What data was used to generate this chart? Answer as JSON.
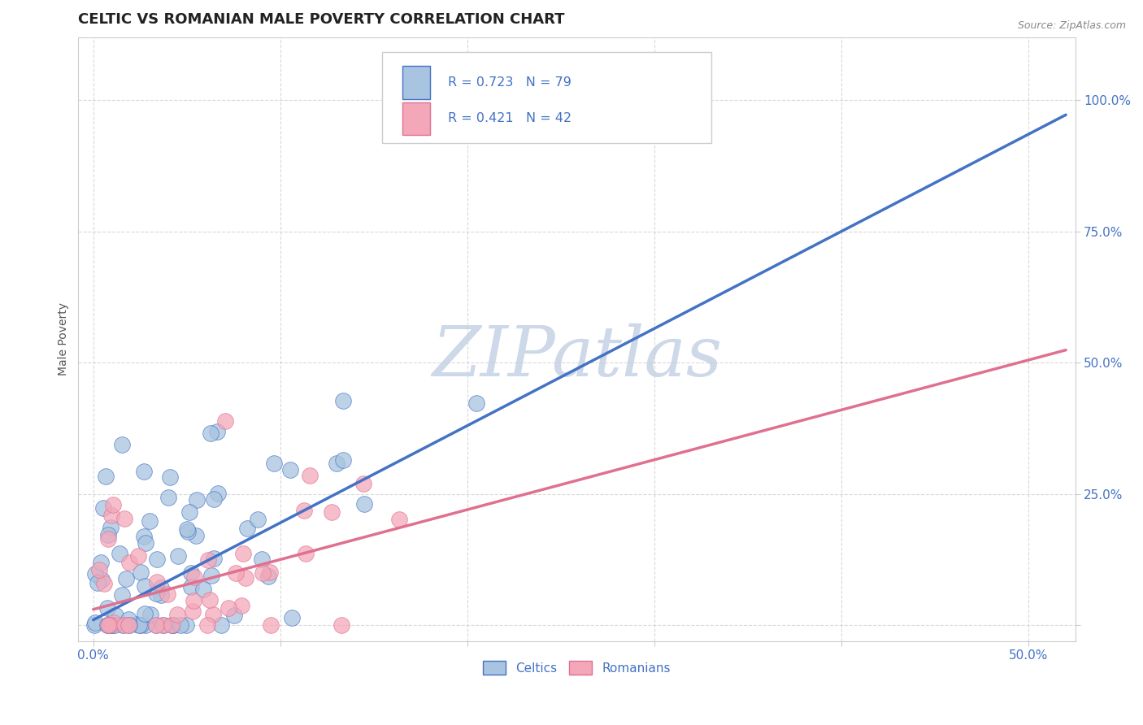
{
  "title": "CELTIC VS ROMANIAN MALE POVERTY CORRELATION CHART",
  "source_text": "Source: ZipAtlas.com",
  "ylabel": "Male Poverty",
  "x_ticks": [
    0.0,
    0.1,
    0.2,
    0.3,
    0.4,
    0.5
  ],
  "x_tick_labels": [
    "0.0%",
    "",
    "",
    "",
    "",
    "50.0%"
  ],
  "y_ticks": [
    0.0,
    0.25,
    0.5,
    0.75,
    1.0
  ],
  "y_tick_labels": [
    "",
    "25.0%",
    "50.0%",
    "75.0%",
    "100.0%"
  ],
  "xlim": [
    -0.008,
    0.525
  ],
  "ylim": [
    -0.03,
    1.12
  ],
  "celtics_R": 0.723,
  "celtics_N": 79,
  "romanians_R": 0.421,
  "romanians_N": 42,
  "celtics_color": "#a8c4e0",
  "romanians_color": "#f4a7b9",
  "celtics_line_color": "#4472c4",
  "romanians_line_color": "#e07090",
  "title_color": "#222222",
  "axis_label_color": "#4472c4",
  "ylabel_color": "#555555",
  "legend_text_color": "#4472c4",
  "grid_color": "#d0d0d0",
  "watermark_color": "#cdd8e8",
  "background_color": "#ffffff",
  "title_fontsize": 13,
  "label_fontsize": 10,
  "tick_fontsize": 11,
  "source_fontsize": 9
}
